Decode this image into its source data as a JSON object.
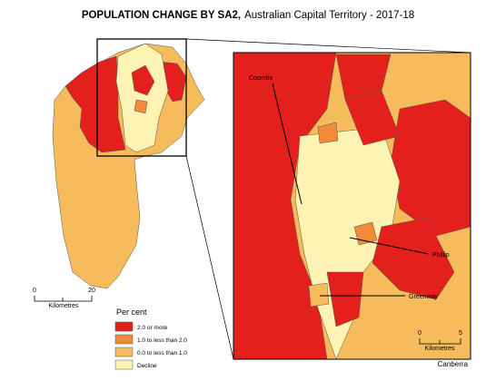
{
  "title": {
    "bold": "POPULATION CHANGE BY SA2,",
    "rest": "Australian Capital Territory - 2017-18"
  },
  "legend": {
    "title": "Per cent",
    "items": [
      {
        "label": "2.0 or more",
        "color": "#e3201b"
      },
      {
        "label": "1.0 to less than 2.0",
        "color": "#f28a3c"
      },
      {
        "label": "0.0 to less than 1.0",
        "color": "#f6bc5c"
      },
      {
        "label": "Decline",
        "color": "#fdf3b2"
      }
    ]
  },
  "labels": {
    "coombs": "Coombs",
    "phillip": "Phillip",
    "greenway": "Greenway"
  },
  "scale_main": {
    "start": "0",
    "end": "20",
    "unit": "Kilometres"
  },
  "scale_inset": {
    "start": "0",
    "end": "5",
    "unit": "Kilometres"
  },
  "place": "Canberra"
}
